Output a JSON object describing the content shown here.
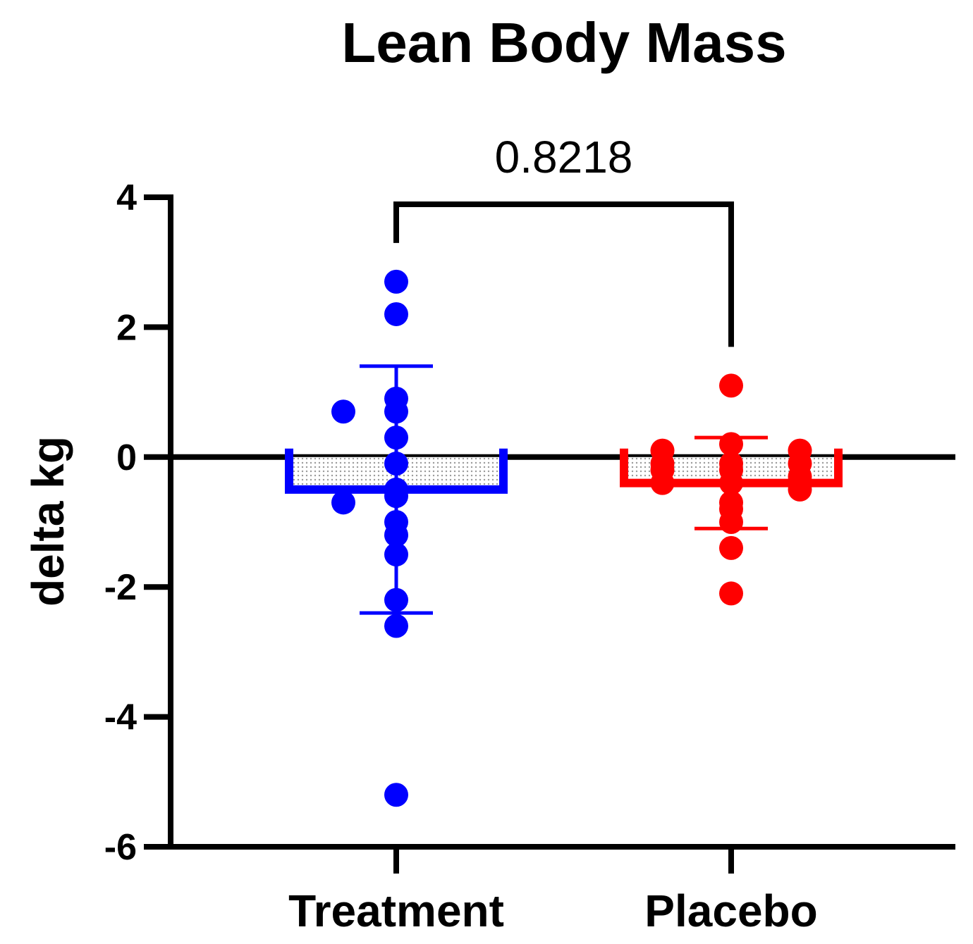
{
  "chart_data": {
    "type": "bar",
    "title": "Lean Body Mass",
    "xlabel": "",
    "ylabel": "delta kg",
    "ylim": [
      -6,
      4
    ],
    "yticks": [
      4,
      2,
      0,
      -2,
      -4,
      -6
    ],
    "categories": [
      "Treatment",
      "Placebo"
    ],
    "colors": {
      "Treatment": "#0000ff",
      "Placebo": "#ff0000",
      "axis": "#000000"
    },
    "series": [
      {
        "name": "Treatment",
        "mean": -0.5,
        "sd_upper": 1.4,
        "sd_lower": -2.4,
        "points": [
          2.7,
          2.2,
          0.9,
          0.7,
          0.7,
          0.3,
          -0.1,
          -0.5,
          -0.6,
          -0.7,
          -1.0,
          -1.2,
          -1.5,
          -2.2,
          -2.6,
          -5.2
        ]
      },
      {
        "name": "Placebo",
        "mean": -0.4,
        "sd_upper": 0.3,
        "sd_lower": -1.1,
        "points": [
          1.1,
          0.2,
          0.1,
          0.1,
          -0.1,
          -0.1,
          -0.1,
          -0.2,
          -0.2,
          -0.3,
          -0.4,
          -0.4,
          -0.5,
          -0.7,
          -0.8,
          -1.0,
          -1.4,
          -2.1
        ]
      }
    ],
    "annotation": {
      "text": "0.8218",
      "between": [
        "Treatment",
        "Placebo"
      ]
    }
  }
}
